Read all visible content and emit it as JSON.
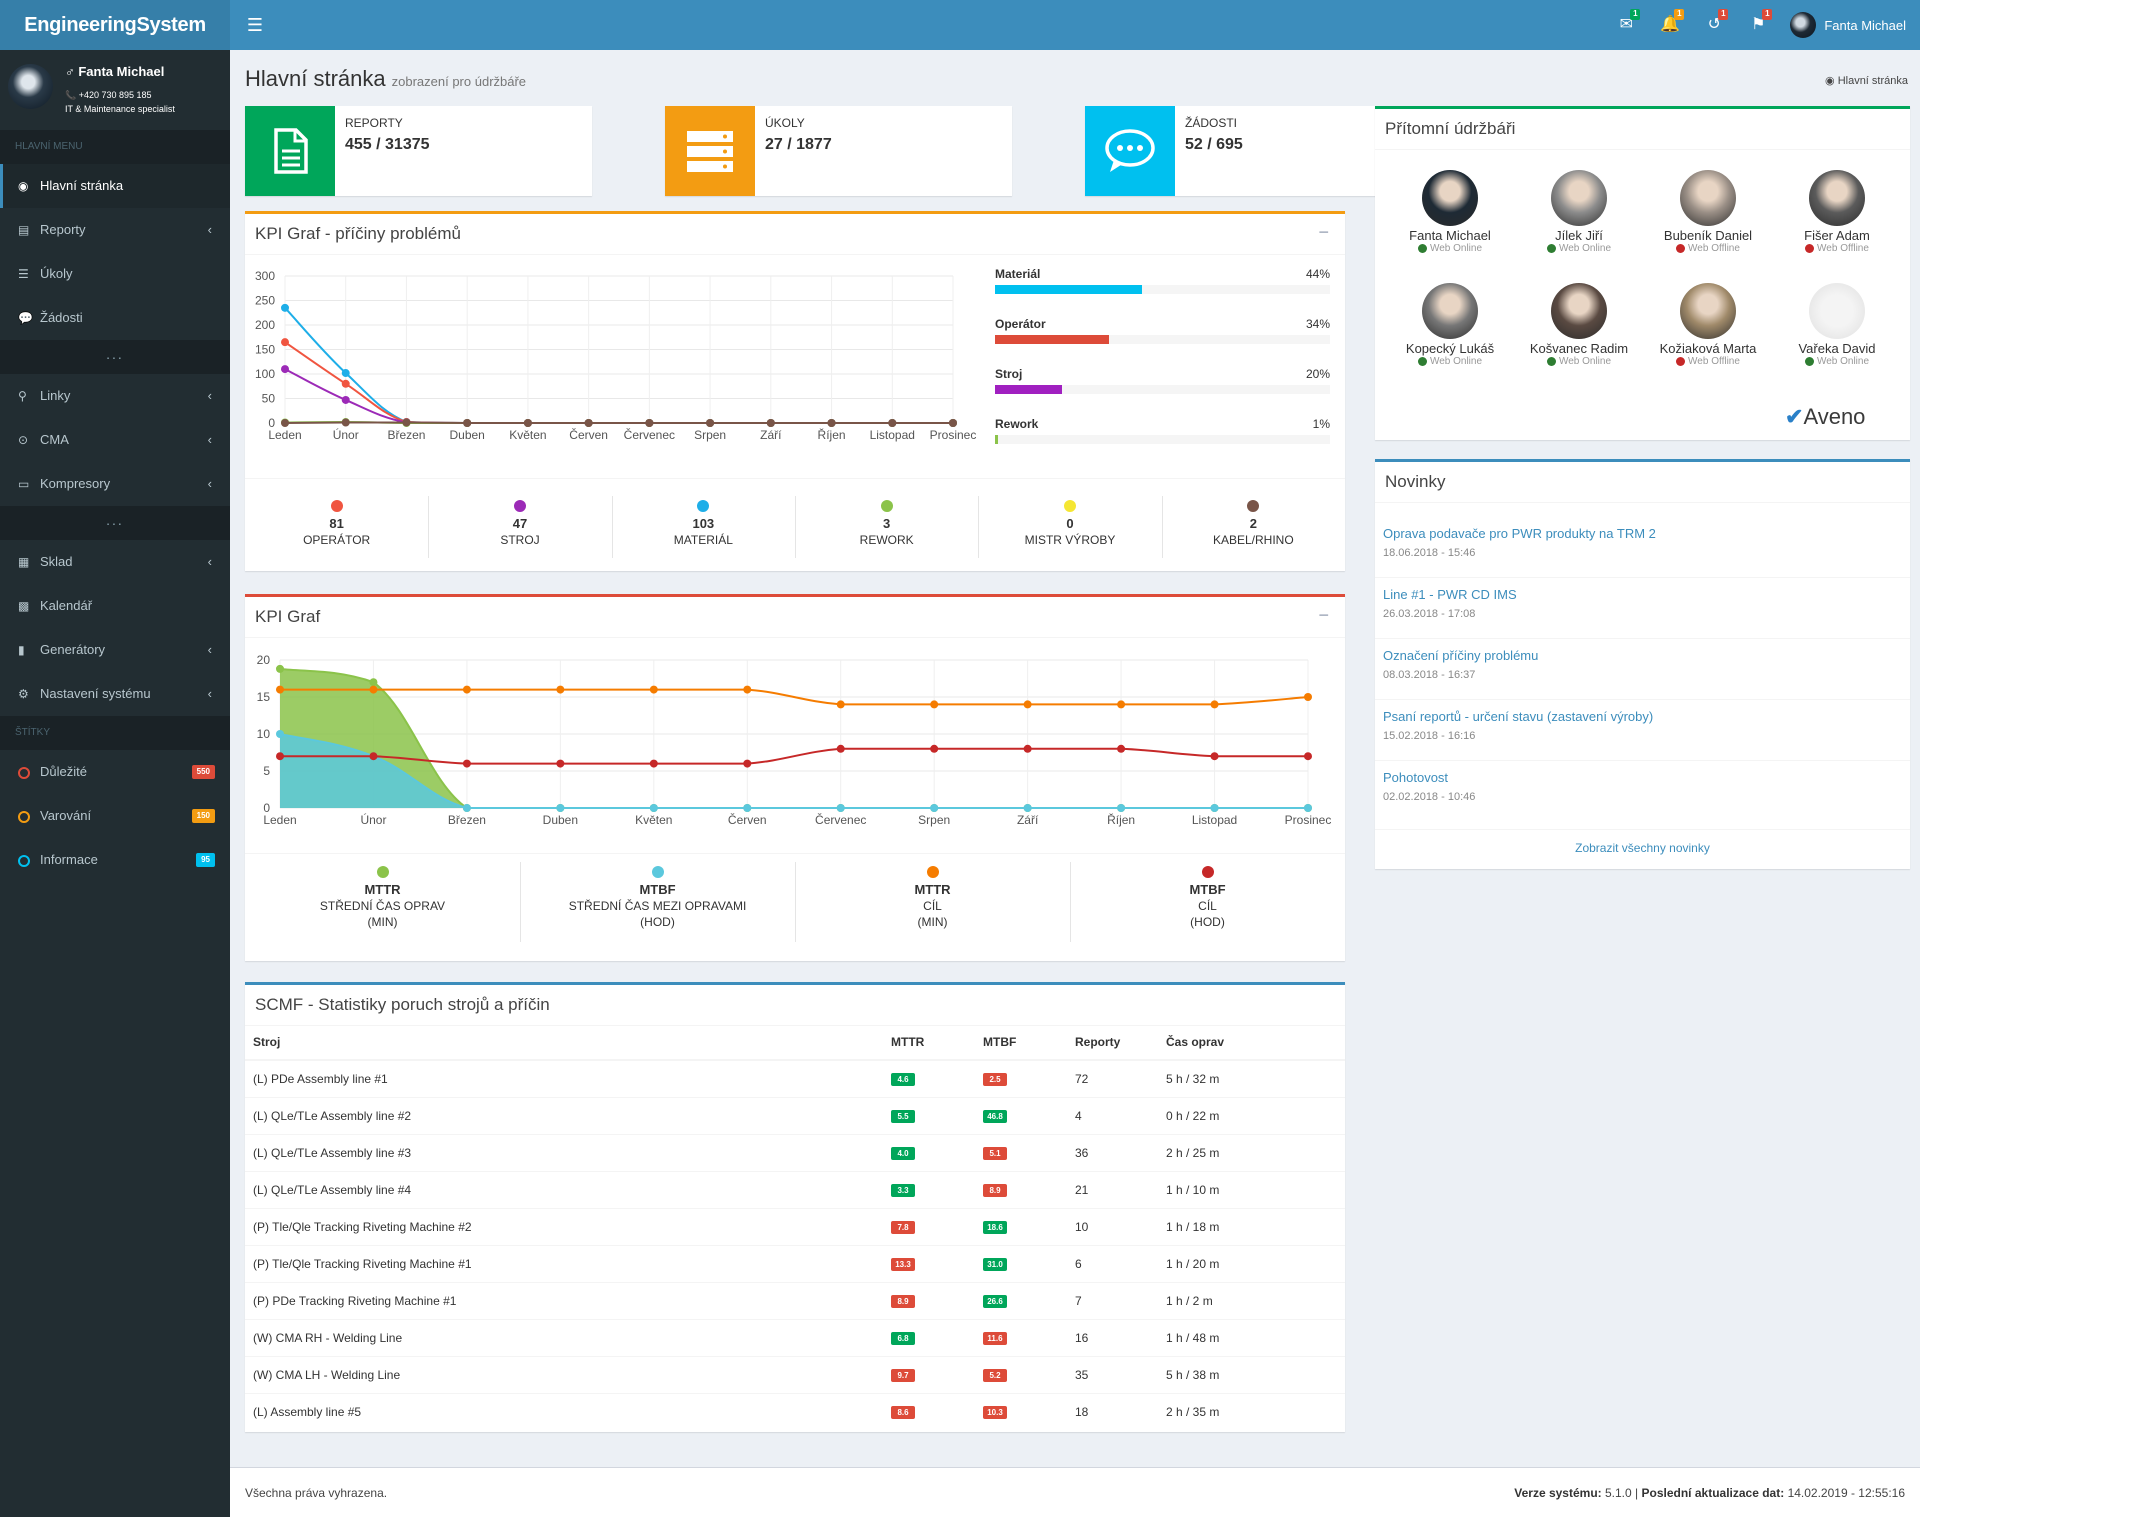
{
  "app": {
    "brand": "EngineeringSystem",
    "menu_icon": "hamburger-icon"
  },
  "topbar": {
    "icons": [
      {
        "name": "envelope-icon",
        "glyph": "✉",
        "badge": "1",
        "badge_color": "#00a65a"
      },
      {
        "name": "bell-icon",
        "glyph": "🔔",
        "badge": "1",
        "badge_color": "#f39c12"
      },
      {
        "name": "history-icon",
        "glyph": "↺",
        "badge": "1",
        "badge_color": "#dd4b39"
      },
      {
        "name": "flag-icon",
        "glyph": "⚑",
        "badge": "1",
        "badge_color": "#dd4b39"
      }
    ],
    "user_name": "Fanta Michael"
  },
  "sidebar": {
    "user": {
      "name": "♂ Fanta Michael",
      "phone": "📞 +420 730 895 185",
      "role": "IT & Maintenance specialist"
    },
    "header_main": "HLAVNÍ MENU",
    "items_a": [
      {
        "label": "Hlavní stránka",
        "icon": "dashboard-icon",
        "glyph": "◉",
        "active": true,
        "chevron": false
      },
      {
        "label": "Reporty",
        "icon": "file-icon",
        "glyph": "▤",
        "chevron": true
      },
      {
        "label": "Úkoly",
        "icon": "list-icon",
        "glyph": "☰",
        "chevron": false
      },
      {
        "label": "Žádosti",
        "icon": "comment-icon",
        "glyph": "💬",
        "chevron": false
      }
    ],
    "sep1": "...",
    "items_b": [
      {
        "label": "Linky",
        "icon": "link-icon",
        "glyph": "⚲",
        "chevron": true
      },
      {
        "label": "CMA",
        "icon": "circle-dot-icon",
        "glyph": "⊙",
        "chevron": true
      },
      {
        "label": "Kompresory",
        "icon": "drive-icon",
        "glyph": "▭",
        "chevron": true
      }
    ],
    "sep2": "...",
    "items_c": [
      {
        "label": "Sklad",
        "icon": "warehouse-icon",
        "glyph": "▦",
        "chevron": true
      },
      {
        "label": "Kalendář",
        "icon": "calendar-icon",
        "glyph": "▩",
        "chevron": false
      },
      {
        "label": "Generátory",
        "icon": "bar-chart-icon",
        "glyph": "▮",
        "chevron": true
      },
      {
        "label": "Nastavení systému",
        "icon": "cogs-icon",
        "glyph": "⚙",
        "chevron": true
      }
    ],
    "header_labels": "ŠTÍTKY",
    "labels": [
      {
        "label": "Důležité",
        "count": "550",
        "color": "#dd4b39"
      },
      {
        "label": "Varování",
        "count": "150",
        "color": "#f39c12"
      },
      {
        "label": "Informace",
        "count": "95",
        "color": "#00c0ef"
      }
    ]
  },
  "page": {
    "title": "Hlavní stránka",
    "subtitle": "zobrazení pro údržbáře",
    "breadcrumb": "Hlavní stránka"
  },
  "infoboxes": [
    {
      "label": "REPORTY",
      "value": "455 / 31375",
      "color": "#00a65a",
      "icon": "document-icon"
    },
    {
      "label": "ÚKOLY",
      "value": "27 / 1877",
      "color": "#f39c12",
      "icon": "tasks-icon"
    },
    {
      "label": "ŽÁDOSTI",
      "value": "52 / 695",
      "color": "#00c0ef",
      "icon": "chat-icon"
    }
  ],
  "kpi1": {
    "title": "KPI Graf - příčiny problémů",
    "bars": [
      {
        "label": "Materiál",
        "pct": "44%",
        "value": 44,
        "color": "#00c0ef"
      },
      {
        "label": "Operátor",
        "pct": "34%",
        "value": 34,
        "color": "#dd4b39"
      },
      {
        "label": "Stroj",
        "pct": "20%",
        "value": 20,
        "color": "#a020c0"
      },
      {
        "label": "Rework",
        "pct": "1%",
        "value": 1,
        "color": "#8bc34a"
      }
    ],
    "stats": [
      {
        "value": "81",
        "label": "OPERÁTOR",
        "color": "#f05540"
      },
      {
        "value": "47",
        "label": "STROJ",
        "color": "#9c2ab7"
      },
      {
        "value": "103",
        "label": "MATERIÁL",
        "color": "#1eaee8"
      },
      {
        "value": "3",
        "label": "REWORK",
        "color": "#8bc34a"
      },
      {
        "value": "0",
        "label": "MISTR VÝROBY",
        "color": "#f5e633"
      },
      {
        "value": "2",
        "label": "KABEL/RHINO",
        "color": "#795548"
      }
    ]
  },
  "kpi2": {
    "title": "KPI Graf",
    "stats": [
      {
        "value": "MTTR",
        "l1": "STŘEDNÍ ČAS OPRAV",
        "l2": "(MIN)",
        "color": "#8bc34a"
      },
      {
        "value": "MTBF",
        "l1": "STŘEDNÍ ČAS MEZI OPRAVAMI",
        "l2": "(HOD)",
        "color": "#5bc8dd"
      },
      {
        "value": "MTTR",
        "l1": "CÍL",
        "l2": "(MIN)",
        "color": "#f57c00"
      },
      {
        "value": "MTBF",
        "l1": "CÍL",
        "l2": "(HOD)",
        "color": "#c62828"
      }
    ]
  },
  "chart_data": [
    {
      "type": "line",
      "title": "KPI Graf - příčiny problémů",
      "categories": [
        "Leden",
        "Únor",
        "Březen",
        "Duben",
        "Květen",
        "Červen",
        "Červenec",
        "Srpen",
        "Září",
        "Říjen",
        "Listopad",
        "Prosinec"
      ],
      "ylim": [
        0,
        300
      ],
      "yticks": [
        0,
        50,
        100,
        150,
        200,
        250,
        300
      ],
      "grid": true,
      "series": [
        {
          "color": "#1eaee8",
          "values": [
            235,
            102,
            2,
            0,
            0,
            0,
            0,
            0,
            0,
            0,
            0,
            0
          ]
        },
        {
          "color": "#f05540",
          "values": [
            165,
            80,
            2,
            0,
            0,
            0,
            0,
            0,
            0,
            0,
            0,
            0
          ]
        },
        {
          "color": "#9c2ab7",
          "values": [
            110,
            47,
            1,
            0,
            0,
            0,
            0,
            0,
            0,
            0,
            0,
            0
          ]
        },
        {
          "color": "#8bc34a",
          "values": [
            1,
            2,
            0,
            0,
            0,
            0,
            0,
            0,
            0,
            0,
            0,
            0
          ]
        },
        {
          "color": "#795548",
          "values": [
            0,
            1,
            1,
            0,
            0,
            0,
            0,
            0,
            0,
            0,
            0,
            0
          ]
        }
      ]
    },
    {
      "type": "area",
      "title": "KPI Graf",
      "categories": [
        "Leden",
        "Únor",
        "Březen",
        "Duben",
        "Květen",
        "Červen",
        "Červenec",
        "Srpen",
        "Září",
        "Říjen",
        "Listopad",
        "Prosinec"
      ],
      "ylim": [
        0,
        20
      ],
      "yticks": [
        0,
        5,
        10,
        15,
        20
      ],
      "grid": true,
      "series": [
        {
          "color": "#8bc34a",
          "kind": "area",
          "values": [
            18.8,
            17,
            0,
            0,
            0,
            0,
            0,
            0,
            0,
            0,
            0,
            0
          ]
        },
        {
          "color": "#5bc8dd",
          "kind": "area",
          "values": [
            10,
            7,
            0,
            0,
            0,
            0,
            0,
            0,
            0,
            0,
            0,
            0
          ]
        },
        {
          "color": "#f57c00",
          "kind": "line",
          "values": [
            16,
            16,
            16,
            16,
            16,
            16,
            14,
            14,
            14,
            14,
            14,
            15
          ]
        },
        {
          "color": "#c62828",
          "kind": "line",
          "values": [
            7,
            7,
            6,
            6,
            6,
            6,
            8,
            8,
            8,
            8,
            7,
            7
          ]
        }
      ]
    }
  ],
  "scmf": {
    "title": "SCMF - Statistiky poruch strojů a příčin",
    "headers": [
      "Stroj",
      "MTTR",
      "MTBF",
      "Reporty",
      "Čas oprav"
    ],
    "rows": [
      {
        "stroj": "(L) PDe Assembly line #1",
        "mttr": "4.6",
        "mttr_c": "green",
        "mtbf": "2.5",
        "mtbf_c": "red",
        "rep": "72",
        "cas": "5 h / 32 m"
      },
      {
        "stroj": "(L) QLe/TLe Assembly line #2",
        "mttr": "5.5",
        "mttr_c": "green",
        "mtbf": "46.8",
        "mtbf_c": "green",
        "rep": "4",
        "cas": "0 h / 22 m"
      },
      {
        "stroj": "(L) QLe/TLe Assembly line #3",
        "mttr": "4.0",
        "mttr_c": "green",
        "mtbf": "5.1",
        "mtbf_c": "red",
        "rep": "36",
        "cas": "2 h / 25 m"
      },
      {
        "stroj": "(L) QLe/TLe Assembly line #4",
        "mttr": "3.3",
        "mttr_c": "green",
        "mtbf": "8.9",
        "mtbf_c": "red",
        "rep": "21",
        "cas": "1 h / 10 m"
      },
      {
        "stroj": "(P) Tle/Qle Tracking Riveting Machine #2",
        "mttr": "7.8",
        "mttr_c": "red",
        "mtbf": "18.6",
        "mtbf_c": "green",
        "rep": "10",
        "cas": "1 h / 18 m"
      },
      {
        "stroj": "(P) Tle/Qle Tracking Riveting Machine #1",
        "mttr": "13.3",
        "mttr_c": "red",
        "mtbf": "31.0",
        "mtbf_c": "green",
        "rep": "6",
        "cas": "1 h / 20 m"
      },
      {
        "stroj": "(P) PDe Tracking Riveting Machine #1",
        "mttr": "8.9",
        "mttr_c": "red",
        "mtbf": "26.6",
        "mtbf_c": "green",
        "rep": "7",
        "cas": "1 h / 2 m"
      },
      {
        "stroj": "(W) CMA RH - Welding Line",
        "mttr": "6.8",
        "mttr_c": "green",
        "mtbf": "11.6",
        "mtbf_c": "red",
        "rep": "16",
        "cas": "1 h / 48 m"
      },
      {
        "stroj": "(W) CMA LH - Welding Line",
        "mttr": "9.7",
        "mttr_c": "red",
        "mtbf": "5.2",
        "mtbf_c": "red",
        "rep": "35",
        "cas": "5 h / 38 m"
      },
      {
        "stroj": "(L) Assembly line #5",
        "mttr": "8.6",
        "mttr_c": "red",
        "mtbf": "10.3",
        "mtbf_c": "red",
        "rep": "18",
        "cas": "2 h / 35 m"
      }
    ]
  },
  "present": {
    "title": "Přítomní údržbáři",
    "people": [
      {
        "name": "Fanta Michael",
        "status": "Web Online",
        "online": true,
        "avatar": "#1e2a35"
      },
      {
        "name": "Jílek Jiří",
        "status": "Web Online",
        "online": true,
        "avatar": "#8c8c8c"
      },
      {
        "name": "Bubeník Daniel",
        "status": "Web Offline",
        "online": false,
        "avatar": "#9a8f86"
      },
      {
        "name": "Fišer Adam",
        "status": "Web Offline",
        "online": false,
        "avatar": "#5b5b5b"
      },
      {
        "name": "Kopecký Lukáš",
        "status": "Web Online",
        "online": true,
        "avatar": "#777777"
      },
      {
        "name": "Košvanec Radim",
        "status": "Web Online",
        "online": true,
        "avatar": "#5a4a42"
      },
      {
        "name": "Kožiaková Marta",
        "status": "Web Offline",
        "online": false,
        "avatar": "#a08a6a"
      },
      {
        "name": "Vařeka David",
        "status": "Web Online",
        "online": true,
        "avatar": "#e6e6e6"
      }
    ],
    "brand_logo": "Aveno"
  },
  "news": {
    "title": "Novinky",
    "items": [
      {
        "title": "Oprava podavače pro PWR produkty na TRM 2",
        "date": "18.06.2018 - 15:46"
      },
      {
        "title": "Line #1 - PWR CD IMS",
        "date": "26.03.2018 - 17:08"
      },
      {
        "title": "Označení příčiny problému",
        "date": "08.03.2018 - 16:37"
      },
      {
        "title": "Psaní reportů - určení stavu (zastavení výroby)",
        "date": "15.02.2018 - 16:16"
      },
      {
        "title": "Pohotovost",
        "date": "02.02.2018 - 10:46"
      }
    ],
    "more": "Zobrazit všechny novinky"
  },
  "footer": {
    "left": "Všechna práva vyhrazena.",
    "ver_label": "Verze systému:",
    "ver": "5.1.0",
    "upd_label": "Poslední aktualizace dat:",
    "upd": "14.02.2019 - 12:55:16"
  }
}
